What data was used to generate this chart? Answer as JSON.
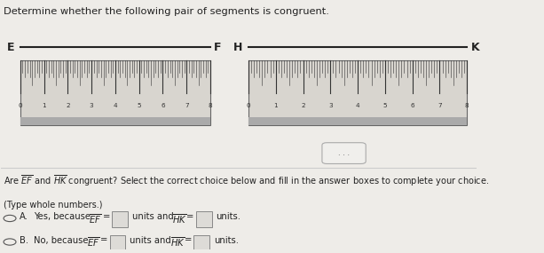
{
  "title": "Determine whether the following pair of segments is congruent.",
  "bg_color": "#eeece8",
  "ruler_bg": "#d8d5cf",
  "ruler_border": "#555555",
  "ruler_tick_color": "#333333",
  "segment_color": "#222222",
  "text_color": "#222222",
  "seg1_label_left": "E",
  "seg1_label_right": "F",
  "seg2_label_left": "H",
  "seg2_label_right": "K",
  "ruler_max": 8
}
